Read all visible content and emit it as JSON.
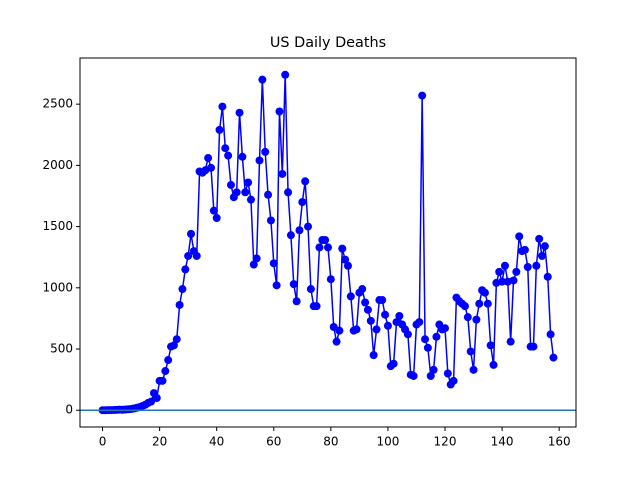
{
  "chart_data": {
    "type": "line",
    "title": "US Daily Deaths",
    "x": [
      0,
      1,
      2,
      3,
      4,
      5,
      6,
      7,
      8,
      9,
      10,
      11,
      12,
      13,
      14,
      15,
      16,
      17,
      18,
      19,
      20,
      21,
      22,
      23,
      24,
      25,
      26,
      27,
      28,
      29,
      30,
      31,
      32,
      33,
      34,
      35,
      36,
      37,
      38,
      39,
      40,
      41,
      42,
      43,
      44,
      45,
      46,
      47,
      48,
      49,
      50,
      51,
      52,
      53,
      54,
      55,
      56,
      57,
      58,
      59,
      60,
      61,
      62,
      63,
      64,
      65,
      66,
      67,
      68,
      69,
      70,
      71,
      72,
      73,
      74,
      75,
      76,
      77,
      78,
      79,
      80,
      81,
      82,
      83,
      84,
      85,
      86,
      87,
      88,
      89,
      90,
      91,
      92,
      93,
      94,
      95,
      96,
      97,
      98,
      99,
      100,
      101,
      102,
      103,
      104,
      105,
      106,
      107,
      108,
      109,
      110,
      111,
      112,
      113,
      114,
      115,
      116,
      117,
      118,
      119,
      120,
      121,
      122,
      123,
      124,
      125,
      126,
      127,
      128,
      129,
      130,
      131,
      132,
      133,
      134,
      135,
      136,
      137,
      138,
      139,
      140,
      141,
      142,
      143,
      144,
      145,
      146,
      147,
      148,
      149,
      150,
      151,
      152,
      153,
      154,
      155,
      156,
      157,
      158
    ],
    "series": [
      {
        "name": "US Daily Deaths",
        "color": "#0000ff",
        "values": [
          0,
          0,
          1,
          1,
          2,
          3,
          5,
          4,
          6,
          8,
          10,
          14,
          20,
          25,
          35,
          45,
          60,
          70,
          140,
          100,
          240,
          240,
          320,
          410,
          520,
          530,
          580,
          860,
          990,
          1150,
          1260,
          1440,
          1300,
          1260,
          1950,
          1940,
          1960,
          2060,
          1980,
          1630,
          1570,
          2290,
          2480,
          2140,
          2080,
          1840,
          1740,
          1780,
          2430,
          2070,
          1780,
          1860,
          1720,
          1190,
          1240,
          2040,
          2700,
          2110,
          1760,
          1550,
          1200,
          1020,
          2440,
          1930,
          2740,
          1780,
          1430,
          1030,
          890,
          1470,
          1700,
          1870,
          1500,
          990,
          850,
          850,
          1330,
          1390,
          1390,
          1330,
          1070,
          680,
          560,
          650,
          1320,
          1230,
          1180,
          930,
          650,
          660,
          960,
          990,
          880,
          820,
          730,
          450,
          660,
          900,
          900,
          780,
          690,
          360,
          380,
          720,
          770,
          700,
          660,
          620,
          290,
          280,
          700,
          720,
          2570,
          580,
          510,
          280,
          330,
          600,
          700,
          660,
          670,
          300,
          210,
          240,
          920,
          890,
          870,
          850,
          760,
          480,
          330,
          740,
          870,
          980,
          960,
          870,
          530,
          370,
          1040,
          1130,
          1050,
          1180,
          1050,
          560,
          1060,
          1130,
          1420,
          1300,
          1310,
          1170,
          520,
          520,
          1180,
          1400,
          1260,
          1340,
          1090,
          620,
          430
        ]
      }
    ],
    "hline": 0,
    "hline_color": "#1f77b4",
    "xlim": [
      -7.9,
      165.9
    ],
    "xticks": [
      0,
      20,
      40,
      60,
      80,
      100,
      120,
      140,
      160
    ],
    "ylim": [
      -137,
      2877
    ],
    "yticks": [
      0,
      500,
      1000,
      1500,
      2000,
      2500
    ]
  }
}
